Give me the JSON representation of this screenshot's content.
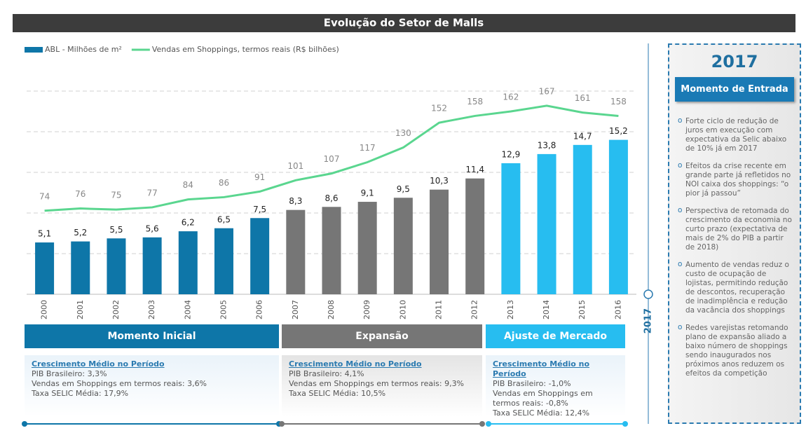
{
  "chart_data": {
    "type": "bar-line",
    "title": "Evolução do Setor de Malls",
    "categories": [
      "2000",
      "2001",
      "2002",
      "2003",
      "2004",
      "2005",
      "2006",
      "2007",
      "2008",
      "2009",
      "2010",
      "2011",
      "2012",
      "2013",
      "2014",
      "2015",
      "2016"
    ],
    "series": [
      {
        "name": "ABL - Milhões de m²",
        "type": "bar",
        "color": "#0e76a8",
        "colors": [
          "#0e76a8",
          "#0e76a8",
          "#0e76a8",
          "#0e76a8",
          "#0e76a8",
          "#0e76a8",
          "#0e76a8",
          "#767676",
          "#767676",
          "#767676",
          "#767676",
          "#767676",
          "#767676",
          "#27bdf0",
          "#27bdf0",
          "#27bdf0",
          "#27bdf0"
        ],
        "values": [
          5.1,
          5.2,
          5.5,
          5.6,
          6.2,
          6.5,
          7.5,
          8.3,
          8.6,
          9.1,
          9.5,
          10.3,
          11.4,
          12.9,
          13.8,
          14.7,
          15.2
        ],
        "value_labels": [
          "5,1",
          "5,2",
          "5,5",
          "5,6",
          "6,2",
          "6,5",
          "7,5",
          "8,3",
          "8,6",
          "9,1",
          "9,5",
          "10,3",
          "11,4",
          "12,9",
          "13,8",
          "14,7",
          "15,2"
        ]
      },
      {
        "name": "Vendas em Shoppings, termos reais (R$ bilhões)",
        "type": "line",
        "axis": "y2",
        "color": "#5ad68f",
        "values": [
          74,
          76,
          75,
          77,
          84,
          86,
          91,
          101,
          107,
          117,
          130,
          152,
          158,
          162,
          167,
          161,
          158
        ]
      }
    ],
    "ylim": [
      0,
      20
    ],
    "yticks": [
      0,
      4,
      8,
      12,
      16,
      20
    ],
    "y2lim": [
      0,
      180
    ],
    "grid": true,
    "annotation": "2017"
  },
  "periods": [
    {
      "label": "Momento Inicial",
      "color": "#0e76a8",
      "heading": "Crescimento Médio no Período",
      "lines": [
        "PIB Brasileiro: 3,3%",
        "Vendas em Shoppings em termos reais: 3,6%",
        "Taxa SELIC Média: 17,9%"
      ]
    },
    {
      "label": "Expansão",
      "color": "#767676",
      "heading": "Crescimento Médio no Período",
      "lines": [
        "PIB Brasileiro: 4,1%",
        "Vendas em Shoppings em termos reais: 9,3%",
        "Taxa SELIC Média: 10,5%"
      ]
    },
    {
      "label": "Ajuste de Mercado",
      "color": "#27bdf0",
      "heading": "Crescimento Médio no Período",
      "lines": [
        "PIB Brasileiro: -1,0%",
        "Vendas em Shoppings em termos reais: -0,8%",
        "Taxa SELIC Média: 12,4%"
      ]
    }
  ],
  "sidebar": {
    "year": "2017",
    "subtitle": "Momento de Entrada",
    "bullets": [
      "Forte ciclo de redução de juros em execução com expectativa da Selic abaixo de 10% já em 2017",
      "Efeitos da crise recente em grande parte já refletidos no NOI caixa dos shoppings: “o pior já passou”",
      "Perspectiva de retomada do crescimento da economia no curto prazo (expectativa de mais de 2% do PIB a partir de 2018)",
      "Aumento de vendas reduz o custo de ocupação de lojistas, permitindo redução de descontos, recuperação de inadimplência e redução da vacância dos shoppings",
      "Redes varejistas retomando plano de expansão aliado a baixo número de shoppings sendo inaugurados nos próximos anos reduzem os efeitos da competição"
    ]
  }
}
